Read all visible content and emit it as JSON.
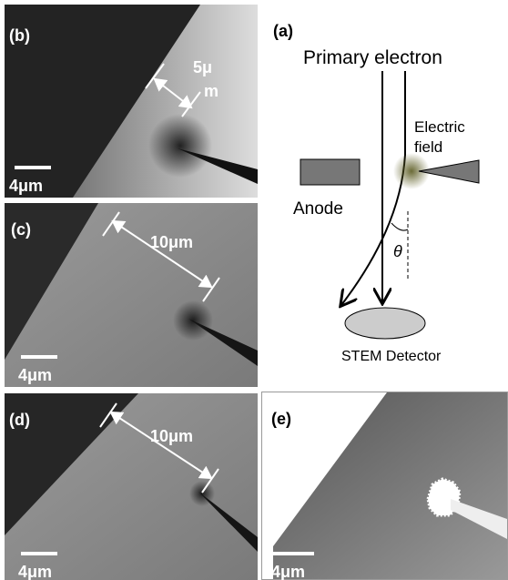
{
  "diagram": {
    "label": "(a)",
    "beam": "Primary electron",
    "field": [
      "Electric",
      "field"
    ],
    "anode": "Anode",
    "angle": "θ",
    "detector": "STEM Detector"
  },
  "panels": [
    {
      "label": "(b)",
      "scale_bar": "4μm",
      "measure": [
        "5μ",
        "m"
      ]
    },
    {
      "label": "(c)",
      "scale_bar": "4μm",
      "measure": [
        "10μm"
      ]
    },
    {
      "label": "(d)",
      "scale_bar": "4μm",
      "measure": [
        "10μm"
      ]
    },
    {
      "label": "(e)",
      "scale_bar": "4μm"
    }
  ]
}
